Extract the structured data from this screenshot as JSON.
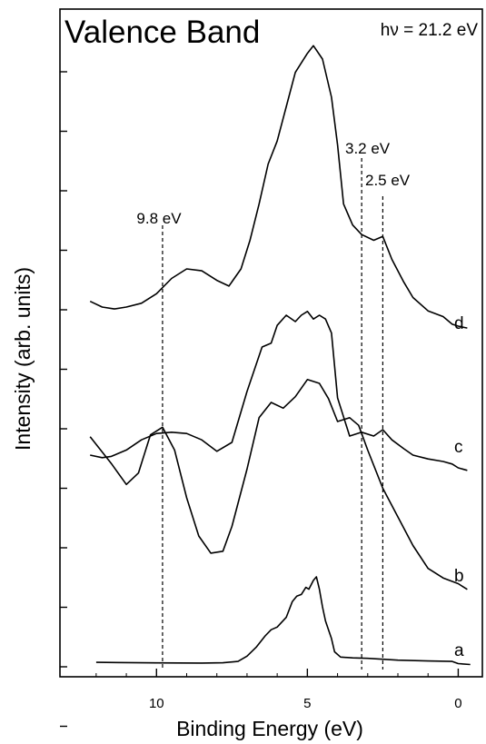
{
  "chart_data": {
    "type": "line",
    "title": "Valence Band",
    "annotation": "hν = 21.2 eV",
    "xlabel": "Binding Energy (eV)",
    "ylabel": "Intensity (arb. units)",
    "xlim": [
      13.2,
      -0.8
    ],
    "x_reversed": true,
    "x_ticks": [
      10,
      5,
      0
    ],
    "y_ticks_count": 12,
    "grid": false,
    "markers": [
      {
        "label": "9.8 eV",
        "x": 9.8
      },
      {
        "label": "3.2 eV",
        "x": 3.2
      },
      {
        "label": "2.5 eV",
        "x": 2.5
      }
    ],
    "series": [
      {
        "name": "a",
        "x": [
          12.0,
          10.0,
          8.5,
          7.8,
          7.3,
          7.0,
          6.7,
          6.4,
          6.2,
          6.0,
          5.7,
          5.5,
          5.35,
          5.2,
          5.05,
          4.95,
          4.8,
          4.7,
          4.6,
          4.5,
          4.4,
          4.3,
          4.2,
          4.1,
          3.9,
          3.5,
          3.0,
          2.5,
          2.0,
          1.0,
          0.2,
          0.0,
          -0.4
        ],
        "y": [
          3.0,
          2.4,
          2.2,
          2.5,
          4.0,
          10.0,
          20.0,
          33.0,
          40.0,
          43.0,
          54.0,
          72.0,
          78.0,
          80.0,
          88.0,
          86.0,
          96.0,
          100.0,
          86.0,
          66.0,
          50.0,
          40.0,
          30.0,
          15.0,
          9.0,
          8.0,
          7.5,
          6.5,
          5.5,
          4.5,
          4.0,
          1.5,
          0.5
        ]
      },
      {
        "name": "b",
        "x": [
          12.2,
          11.5,
          11.0,
          10.6,
          10.2,
          9.8,
          9.4,
          9.0,
          8.6,
          8.2,
          7.8,
          7.5,
          7.0,
          6.6,
          6.2,
          5.8,
          5.4,
          5.0,
          4.6,
          4.3,
          4.0,
          3.6,
          3.3,
          3.0,
          2.5,
          2.0,
          1.5,
          1.0,
          0.5,
          0.0,
          -0.3
        ],
        "y": [
          82.0,
          68.0,
          57.0,
          63.0,
          83.0,
          87.0,
          75.0,
          50.0,
          30.0,
          21.0,
          22.0,
          35.0,
          65.0,
          92.0,
          100.0,
          97.0,
          103.0,
          112.0,
          110.0,
          102.0,
          90.0,
          92.0,
          88.0,
          75.0,
          55.0,
          40.0,
          25.0,
          13.0,
          8.0,
          5.0,
          2.0
        ]
      },
      {
        "name": "c",
        "x": [
          12.2,
          11.8,
          11.5,
          11.0,
          10.5,
          10.0,
          9.5,
          9.0,
          8.5,
          8.0,
          7.5,
          7.0,
          6.5,
          6.2,
          6.0,
          5.7,
          5.4,
          5.2,
          5.0,
          4.8,
          4.6,
          4.4,
          4.2,
          4.0,
          3.6,
          3.2,
          2.8,
          2.5,
          2.2,
          1.8,
          1.5,
          1.0,
          0.5,
          0.2,
          0.0,
          -0.3
        ],
        "y": [
          10.0,
          8.0,
          9.0,
          14.0,
          22.0,
          27.0,
          28.0,
          27.0,
          22.0,
          13.0,
          20.0,
          60.0,
          95.0,
          98.0,
          112.0,
          120.0,
          115.0,
          120.0,
          123.0,
          117.0,
          120.0,
          117.0,
          106.0,
          55.0,
          25.0,
          28.0,
          25.0,
          30.0,
          22.0,
          15.0,
          10.0,
          7.0,
          5.0,
          3.0,
          0.0,
          -2.0
        ]
      },
      {
        "name": "d",
        "x": [
          12.2,
          11.8,
          11.4,
          11.0,
          10.5,
          10.0,
          9.5,
          9.0,
          8.5,
          8.0,
          7.6,
          7.2,
          6.9,
          6.6,
          6.3,
          6.0,
          5.7,
          5.4,
          5.0,
          4.8,
          4.5,
          4.2,
          4.0,
          3.8,
          3.5,
          3.2,
          2.8,
          2.5,
          2.2,
          1.8,
          1.5,
          1.0,
          0.5,
          0.2,
          0.0,
          -0.3
        ],
        "y": [
          13.0,
          10.0,
          9.0,
          10.0,
          12.0,
          17.0,
          25.0,
          30.0,
          29.0,
          24.0,
          21.0,
          30.0,
          45.0,
          64.0,
          85.0,
          97.0,
          115.0,
          133.0,
          143.0,
          147.0,
          140.0,
          120.0,
          95.0,
          64.0,
          53.0,
          48.0,
          45.0,
          47.0,
          35.0,
          23.0,
          15.0,
          8.0,
          5.0,
          1.0,
          0.0,
          -1.0
        ]
      }
    ]
  }
}
